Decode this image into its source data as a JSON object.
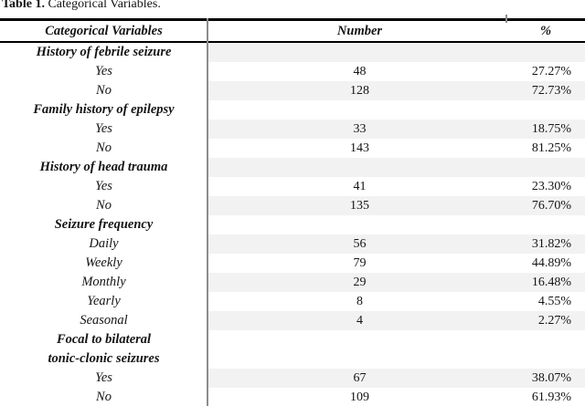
{
  "caption": {
    "label": "Table 1.",
    "title": " Categorical Variables."
  },
  "table": {
    "columns": [
      "Categorical Variables",
      "Number",
      "%"
    ],
    "rows": [
      {
        "type": "category",
        "labels": [
          "History of febrile seizure"
        ],
        "number": "",
        "percent": "",
        "shaded": true
      },
      {
        "type": "item",
        "labels": [
          "Yes"
        ],
        "number": "48",
        "percent": "27.27%",
        "shaded": false
      },
      {
        "type": "item",
        "labels": [
          "No"
        ],
        "number": "128",
        "percent": "72.73%",
        "shaded": true
      },
      {
        "type": "category",
        "labels": [
          "Family history of epilepsy"
        ],
        "number": "",
        "percent": "",
        "shaded": false
      },
      {
        "type": "item",
        "labels": [
          "Yes"
        ],
        "number": "33",
        "percent": "18.75%",
        "shaded": true
      },
      {
        "type": "item",
        "labels": [
          "No"
        ],
        "number": "143",
        "percent": "81.25%",
        "shaded": false
      },
      {
        "type": "category",
        "labels": [
          "History of head trauma"
        ],
        "number": "",
        "percent": "",
        "shaded": true
      },
      {
        "type": "item",
        "labels": [
          "Yes"
        ],
        "number": "41",
        "percent": "23.30%",
        "shaded": false
      },
      {
        "type": "item",
        "labels": [
          "No"
        ],
        "number": "135",
        "percent": "76.70%",
        "shaded": true
      },
      {
        "type": "category",
        "labels": [
          "Seizure frequency"
        ],
        "number": "",
        "percent": "",
        "shaded": false
      },
      {
        "type": "item",
        "labels": [
          "Daily"
        ],
        "number": "56",
        "percent": "31.82%",
        "shaded": true
      },
      {
        "type": "item",
        "labels": [
          "Weekly"
        ],
        "number": "79",
        "percent": "44.89%",
        "shaded": false
      },
      {
        "type": "item",
        "labels": [
          "Monthly"
        ],
        "number": "29",
        "percent": "16.48%",
        "shaded": true
      },
      {
        "type": "item",
        "labels": [
          "Yearly"
        ],
        "number": "8",
        "percent": "4.55%",
        "shaded": false
      },
      {
        "type": "item",
        "labels": [
          "Seasonal"
        ],
        "number": "4",
        "percent": "2.27%",
        "shaded": true
      },
      {
        "type": "category",
        "labels": [
          "Focal to bilateral",
          "tonic-clonic seizures"
        ],
        "number": "",
        "percent": "",
        "shaded": false
      },
      {
        "type": "item",
        "labels": [
          "Yes"
        ],
        "number": "67",
        "percent": "38.07%",
        "shaded": true
      },
      {
        "type": "item",
        "labels": [
          "No"
        ],
        "number": "109",
        "percent": "61.93%",
        "shaded": false
      }
    ]
  },
  "colors": {
    "shaded_row": "#f2f2f2",
    "rule": "#000000",
    "divider": "#8c8c8c",
    "text": "#141414"
  }
}
